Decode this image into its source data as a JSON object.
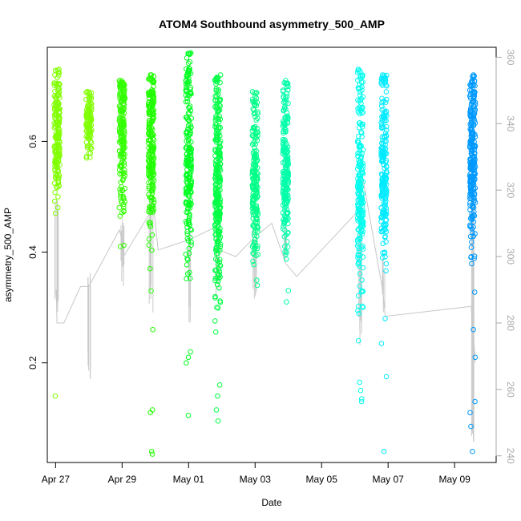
{
  "chart_data": {
    "type": "scatter",
    "title": "ATOM4 Southbound asymmetry_500_AMP",
    "xlabel": "Date",
    "ylabel": "asymmetry_500_AMP",
    "xlim": [
      "2023-04-26T18:00",
      "2023-05-10T06:00"
    ],
    "ylim": [
      0.02,
      0.77
    ],
    "x_ticks": [
      "Apr 27",
      "Apr 29",
      "May 01",
      "May 03",
      "May 05",
      "May 07",
      "May 09"
    ],
    "x_tick_dates": [
      "2023-04-27",
      "2023-04-29",
      "2023-05-01",
      "2023-05-03",
      "2023-05-05",
      "2023-05-07",
      "2023-05-09"
    ],
    "y_ticks": [
      0.2,
      0.4,
      0.6
    ],
    "y_tick_labels": [
      "0.2",
      "0.4",
      "0.6"
    ],
    "y2_ticks": [
      240,
      260,
      280,
      300,
      320,
      340,
      360
    ],
    "y2_tick_labels": [
      "240",
      "260",
      "280",
      "300",
      "320",
      "340",
      "360"
    ],
    "y2lim": [
      238,
      363
    ],
    "point_style": "open-circle",
    "grid": false,
    "legend": "none",
    "clusters": [
      {
        "x": "2023-04-27T01:00",
        "color": "#80ff00",
        "mid": 0.595,
        "spread": 0.05,
        "top": 0.73,
        "bottom": 0.47,
        "n": 150,
        "extremes": [
          0.14
        ]
      },
      {
        "x": "2023-04-28T00:00",
        "color": "#7fff00",
        "mid": 0.63,
        "spread": 0.025,
        "top": 0.69,
        "bottom": 0.57,
        "n": 70,
        "extremes": []
      },
      {
        "x": "2023-04-29T00:00",
        "color": "#33ff00",
        "mid": 0.6,
        "spread": 0.06,
        "top": 0.71,
        "bottom": 0.41,
        "n": 160,
        "extremes": []
      },
      {
        "x": "2023-04-29T21:00",
        "color": "#22ff00",
        "mid": 0.58,
        "spread": 0.07,
        "top": 0.72,
        "bottom": 0.33,
        "n": 200,
        "extremes": [
          0.26,
          0.11,
          0.115,
          0.04,
          0.035
        ]
      },
      {
        "x": "2023-05-01T00:00",
        "color": "#00ff22",
        "mid": 0.54,
        "spread": 0.09,
        "top": 0.76,
        "bottom": 0.2,
        "n": 200,
        "extremes": [
          0.105,
          0.21,
          0.22
        ]
      },
      {
        "x": "2023-05-01T21:00",
        "color": "#00ff44",
        "mid": 0.5,
        "spread": 0.1,
        "top": 0.72,
        "bottom": 0.14,
        "n": 260,
        "extremes": [
          0.095,
          0.115,
          0.16
        ]
      },
      {
        "x": "2023-05-03T00:00",
        "color": "#00ff88",
        "mid": 0.51,
        "spread": 0.06,
        "top": 0.69,
        "bottom": 0.34,
        "n": 170,
        "extremes": []
      },
      {
        "x": "2023-05-03T22:00",
        "color": "#00ffaa",
        "mid": 0.53,
        "spread": 0.06,
        "top": 0.71,
        "bottom": 0.31,
        "n": 190,
        "extremes": []
      },
      {
        "x": "2023-05-06T04:00",
        "color": "#00ffee",
        "mid": 0.5,
        "spread": 0.08,
        "top": 0.73,
        "bottom": 0.24,
        "n": 200,
        "extremes": [
          0.13,
          0.135,
          0.15,
          0.165
        ]
      },
      {
        "x": "2023-05-06T21:00",
        "color": "#00eaff",
        "mid": 0.52,
        "spread": 0.07,
        "top": 0.72,
        "bottom": 0.28,
        "n": 180,
        "extremes": [
          0.175,
          0.235,
          0.04
        ]
      },
      {
        "x": "2023-05-09T13:00",
        "color": "#0099ff",
        "mid": 0.56,
        "spread": 0.07,
        "top": 0.72,
        "bottom": 0.26,
        "n": 230,
        "extremes": [
          0.04,
          0.085,
          0.11,
          0.13,
          0.21
        ]
      }
    ],
    "secondary_series": {
      "color": "#c8c8c8",
      "trace": [
        {
          "x": "2023-04-27T00:30",
          "y": 290
        },
        {
          "x": "2023-04-27T01:00",
          "y": 280
        },
        {
          "x": "2023-04-27T06:00",
          "y": 280
        },
        {
          "x": "2023-04-27T18:00",
          "y": 291
        },
        {
          "x": "2023-04-28T00:00",
          "y": 291
        },
        {
          "x": "2023-04-28T22:00",
          "y": 308
        },
        {
          "x": "2023-04-29T00:00",
          "y": 305
        },
        {
          "x": "2023-04-29T01:00",
          "y": 300
        },
        {
          "x": "2023-04-29T20:00",
          "y": 313
        },
        {
          "x": "2023-04-29T22:00",
          "y": 318
        },
        {
          "x": "2023-04-30T02:00",
          "y": 302
        },
        {
          "x": "2023-05-01T00:00",
          "y": 305
        },
        {
          "x": "2023-05-01T20:00",
          "y": 309
        },
        {
          "x": "2023-05-01T22:00",
          "y": 302
        },
        {
          "x": "2023-05-02T10:00",
          "y": 300
        },
        {
          "x": "2023-05-03T00:00",
          "y": 306
        },
        {
          "x": "2023-05-03T12:00",
          "y": 310
        },
        {
          "x": "2023-05-03T22:00",
          "y": 298
        },
        {
          "x": "2023-05-04T06:00",
          "y": 294
        },
        {
          "x": "2023-05-06T03:00",
          "y": 314
        },
        {
          "x": "2023-05-06T06:00",
          "y": 323
        },
        {
          "x": "2023-05-06T20:00",
          "y": 290
        },
        {
          "x": "2023-05-06T22:00",
          "y": 282
        },
        {
          "x": "2023-05-09T12:00",
          "y": 285
        },
        {
          "x": "2023-05-09T15:00",
          "y": 268
        }
      ],
      "drops": [
        {
          "x": "2023-04-27T00:30",
          "top": 318,
          "bottom": 280
        },
        {
          "x": "2023-04-28T00:00",
          "top": 296,
          "bottom": 262
        },
        {
          "x": "2023-04-29T00:00",
          "top": 312,
          "bottom": 290
        },
        {
          "x": "2023-04-29T21:00",
          "top": 318,
          "bottom": 283
        },
        {
          "x": "2023-05-01T00:00",
          "top": 310,
          "bottom": 280
        },
        {
          "x": "2023-05-01T21:00",
          "top": 312,
          "bottom": 287
        },
        {
          "x": "2023-05-03T00:00",
          "top": 310,
          "bottom": 285
        },
        {
          "x": "2023-05-03T22:00",
          "top": 310,
          "bottom": 295
        },
        {
          "x": "2023-05-06T04:00",
          "top": 324,
          "bottom": 272
        },
        {
          "x": "2023-05-06T21:00",
          "top": 300,
          "bottom": 281
        },
        {
          "x": "2023-05-09T13:00",
          "top": 325,
          "bottom": 243
        }
      ]
    }
  }
}
